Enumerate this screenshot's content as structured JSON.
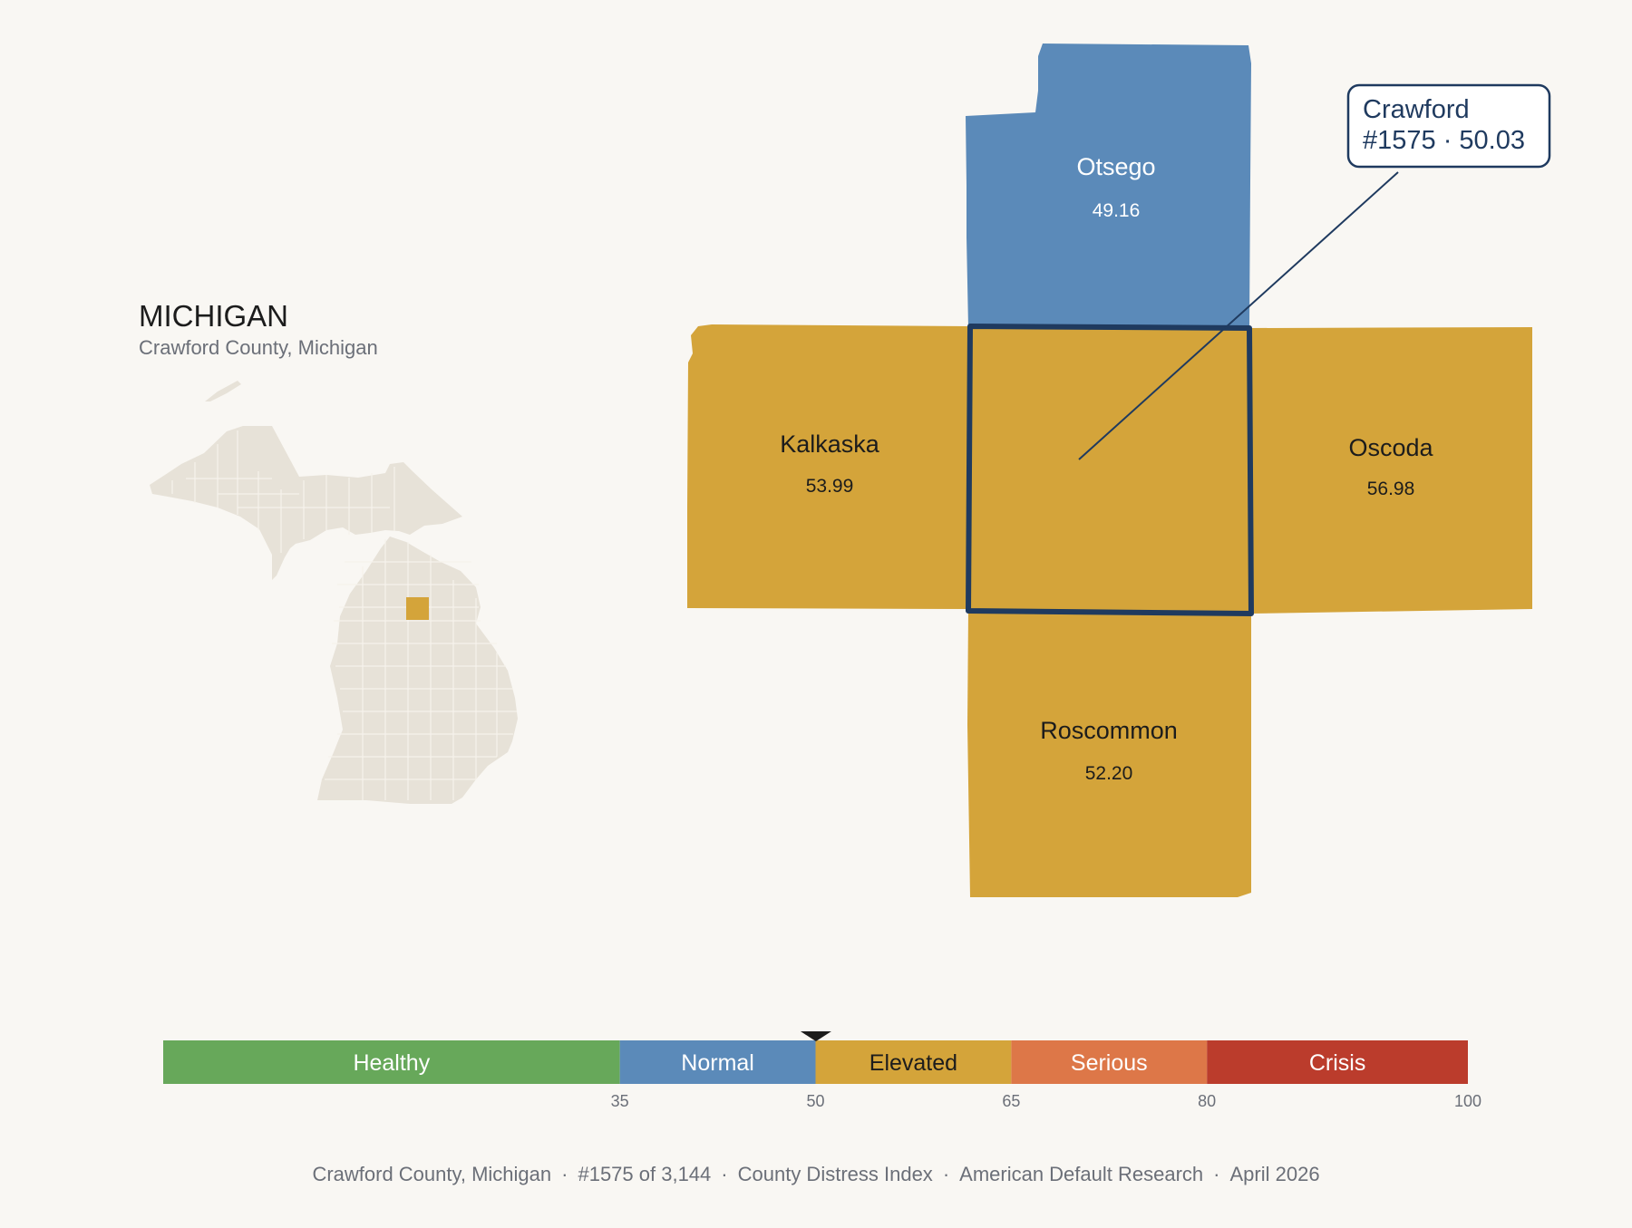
{
  "state": {
    "title": "MICHIGAN",
    "subtitle": "Crawford County, Michigan"
  },
  "focus": {
    "name": "Crawford",
    "rank_score": "#1575 · 50.03",
    "score": 50.03,
    "color": "#d4a43a",
    "outline_color": "#1f3a5f"
  },
  "neighbors": [
    {
      "name": "Otsego",
      "value": "49.16",
      "color": "#5b8ab9"
    },
    {
      "name": "Kalkaska",
      "value": "53.99",
      "color": "#d4a43a"
    },
    {
      "name": "Oscoda",
      "value": "56.98",
      "color": "#d4a43a"
    },
    {
      "name": "Roscommon",
      "value": "52.20",
      "color": "#d4a43a"
    }
  ],
  "scale": {
    "min": 0,
    "max": 100,
    "marker_value": 50.03,
    "bands": [
      {
        "label": "Healthy",
        "from": 0,
        "to": 35,
        "color": "#67a85a"
      },
      {
        "label": "Normal",
        "from": 35,
        "to": 50,
        "color": "#5b8ab9"
      },
      {
        "label": "Elevated",
        "from": 50,
        "to": 65,
        "color": "#d4a43a"
      },
      {
        "label": "Serious",
        "from": 65,
        "to": 80,
        "color": "#dd7748"
      },
      {
        "label": "Crisis",
        "from": 80,
        "to": 100,
        "color": "#bb3c2c"
      }
    ],
    "ticks": [
      "35",
      "50",
      "65",
      "80",
      "100"
    ]
  },
  "footer": {
    "county": "Crawford County, Michigan",
    "rank": "#1575 of 3,144",
    "index": "County Distress Index",
    "source": "American Default Research",
    "date": "April 2026"
  }
}
